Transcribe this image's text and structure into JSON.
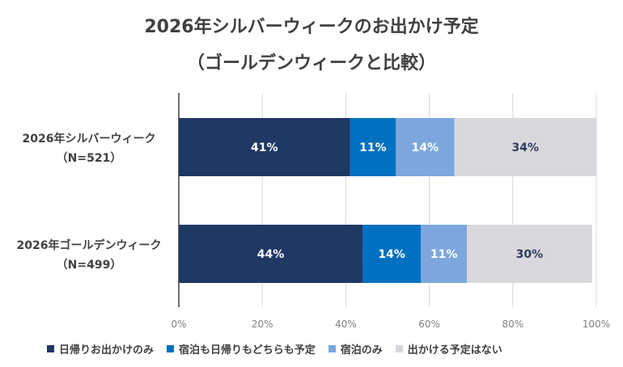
{
  "chart_data": {
    "type": "bar",
    "orientation": "horizontal",
    "stacked": true,
    "title": "2026年シルバーウィークのお出かけ予定",
    "subtitle": "（ゴールデンウィークと比較）",
    "categories": [
      {
        "name": "2026年シルバーウィーク",
        "n": "（N=521）"
      },
      {
        "name": "2026年ゴールデンウィーク",
        "n": "（N=499）"
      }
    ],
    "series": [
      {
        "name": "日帰りお出かけのみ",
        "values": [
          41,
          44
        ],
        "labels": [
          "41%",
          "44%"
        ],
        "color": "#1f3864",
        "label_color": "#ffffff"
      },
      {
        "name": "宿泊も日帰りもどちらも予定",
        "values": [
          11,
          14
        ],
        "labels": [
          "11%",
          "14%"
        ],
        "color": "#0070c0",
        "label_color": "#ffffff"
      },
      {
        "name": "宿泊のみ",
        "values": [
          14,
          11
        ],
        "labels": [
          "14%",
          "11%"
        ],
        "color": "#7ca7dc",
        "label_color": "#ffffff"
      },
      {
        "name": "出かける予定はない",
        "values": [
          34,
          30
        ],
        "labels": [
          "34%",
          "30%"
        ],
        "color": "#d9d8dd",
        "label_color": "#2f3b5c"
      }
    ],
    "xlim": [
      0,
      100
    ],
    "xticks": [
      "0%",
      "20%",
      "40%",
      "60%",
      "80%",
      "100%"
    ],
    "grid": true,
    "legend_position": "bottom"
  }
}
